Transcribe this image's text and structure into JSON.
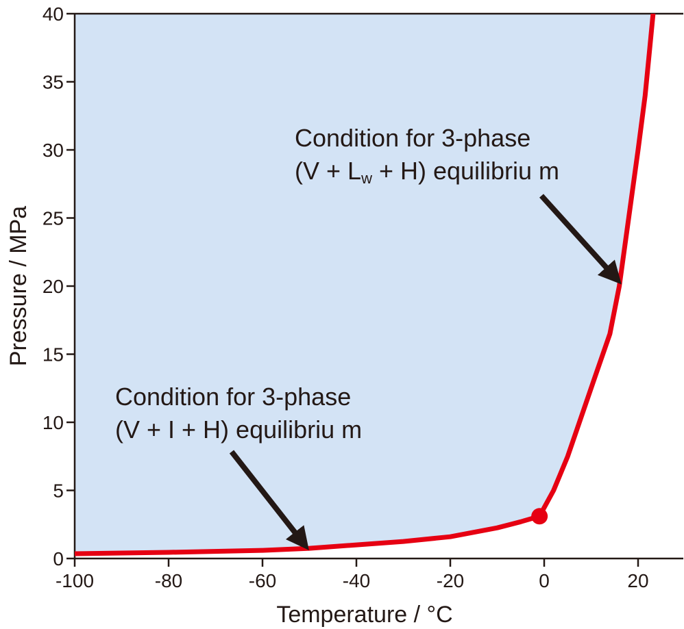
{
  "chart_data": {
    "type": "line",
    "xlabel": "Temperature / °C",
    "ylabel": "Pressure / MPa",
    "xlim": [
      -100,
      30
    ],
    "ylim": [
      0,
      40
    ],
    "x_ticks": [
      -100,
      -80,
      -60,
      -40,
      -20,
      0,
      20
    ],
    "y_ticks": [
      0,
      5,
      10,
      15,
      20,
      25,
      30,
      35,
      40
    ],
    "grid": false,
    "region_fill_color": "#d3e3f5",
    "line_color": "#e60012",
    "series": [
      {
        "x": [
          -100,
          -80,
          -60,
          -50,
          -40,
          -30,
          -20,
          -10,
          -5,
          -1
        ],
        "y": [
          0.35,
          0.45,
          0.6,
          0.75,
          1.0,
          1.25,
          1.6,
          2.25,
          2.7,
          3.1
        ]
      },
      {
        "x": [
          -1,
          2,
          5,
          8,
          11,
          14,
          16,
          18,
          20,
          21.5,
          22.5,
          23.2
        ],
        "y": [
          3.1,
          5.0,
          7.5,
          10.5,
          13.5,
          16.5,
          20.0,
          25.0,
          30.0,
          34.0,
          37.5,
          40.0
        ]
      }
    ],
    "quadruple_point": {
      "x": -1,
      "y": 3.1
    },
    "annotations": [
      {
        "lines": [
          "Condition for 3-phase",
          "(V + L",
          "w",
          " + H) equilibriu  m"
        ],
        "arrow_to": {
          "x": 15.5,
          "y": 20.5
        }
      },
      {
        "lines": [
          "Condition for 3-phase",
          "(V + I + H) equilibriu  m"
        ],
        "arrow_to": {
          "x": -51,
          "y": 1.0
        }
      }
    ]
  }
}
